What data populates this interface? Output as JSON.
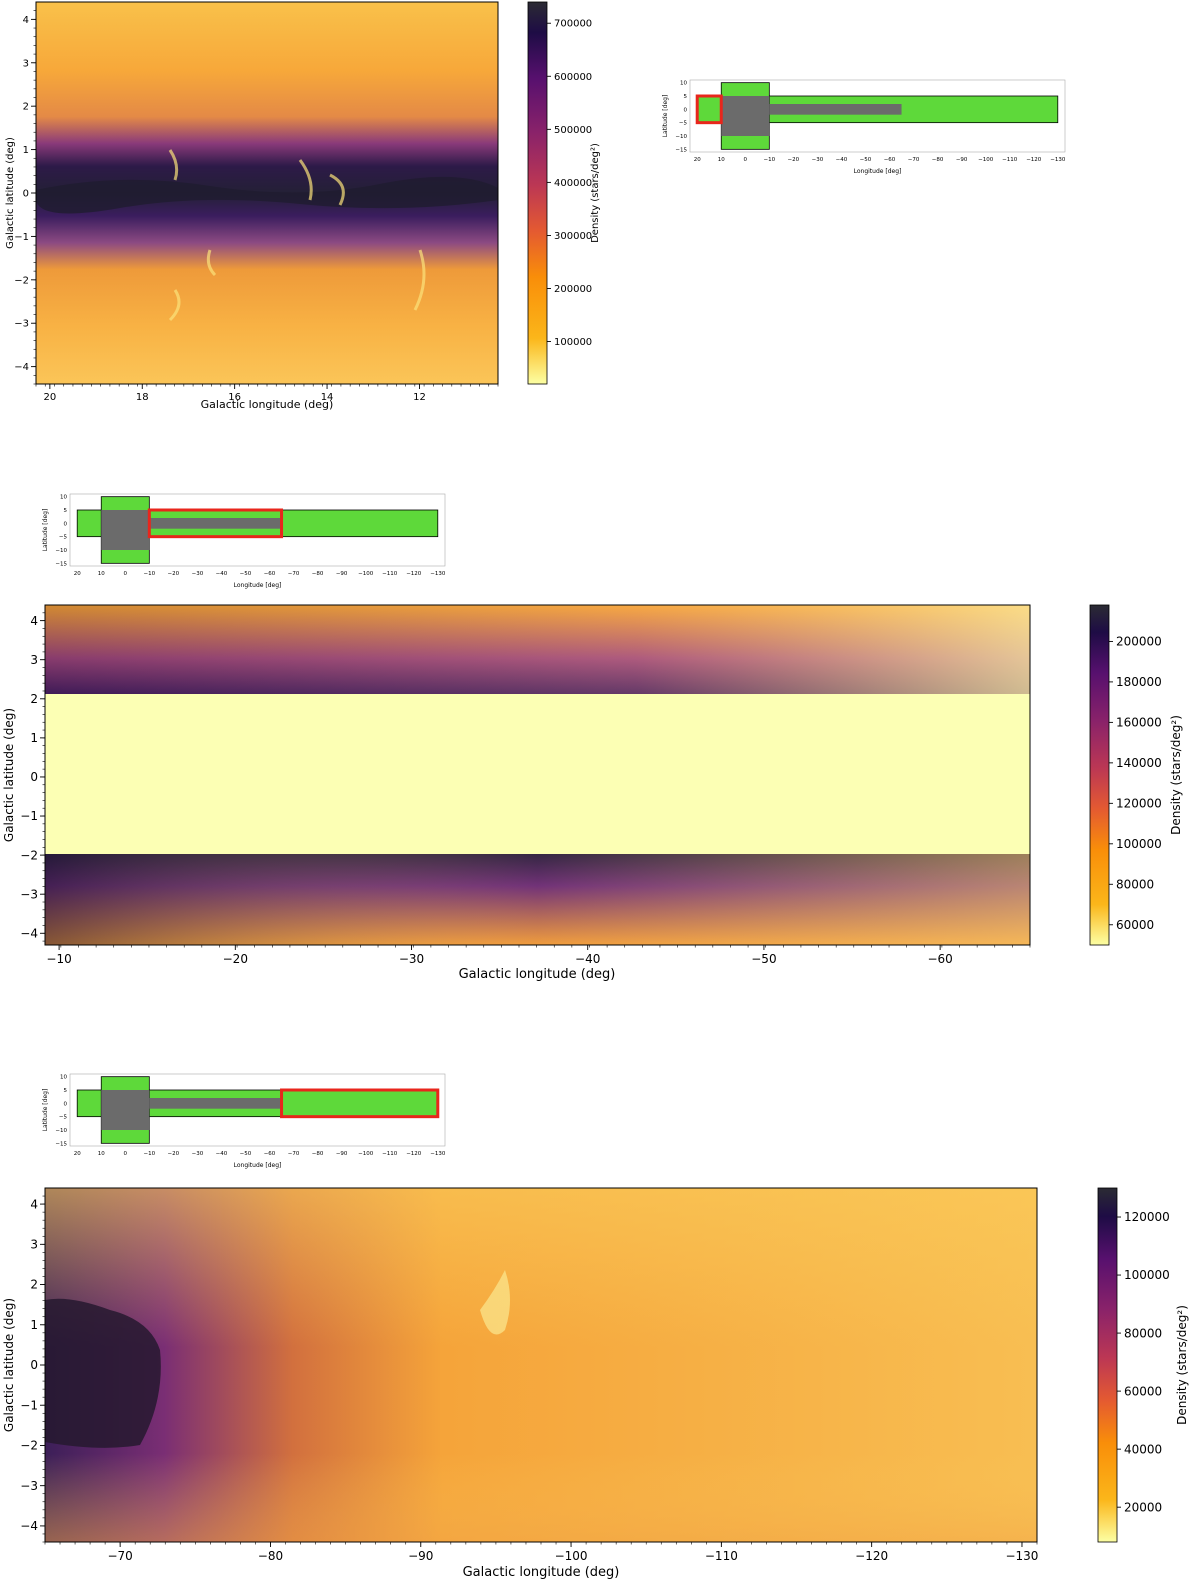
{
  "colormap": {
    "name": "inferno_r",
    "stops": [
      "#fcffa4",
      "#fbb61a",
      "#f98e09",
      "#e45a31",
      "#bc3754",
      "#89226a",
      "#57106e",
      "#1e0c45",
      "#2b2b33"
    ]
  },
  "inset_colors": {
    "survey": "#5ed93a",
    "gray": "#6b6b6b",
    "highlight": "#e8261c"
  },
  "inset": {
    "ylabel": "Latitude [deg]",
    "xlabel": "Longitude [deg]",
    "xticks": [
      "20",
      "10",
      "0",
      "−10",
      "−20",
      "−30",
      "−40",
      "−50",
      "−60",
      "−70",
      "−80",
      "−90",
      "−100",
      "−110",
      "−120",
      "−130"
    ],
    "yticks": [
      "10",
      "5",
      "0",
      "−5",
      "−10",
      "−15"
    ]
  },
  "chart_data": [
    {
      "type": "heatmap",
      "panel": "top",
      "xlabel": "Galactic longitude (deg)",
      "ylabel": "Galactic latitude (deg)",
      "colorbar_label": "Density (stars/deg²)",
      "xlim": [
        20.3,
        10.3
      ],
      "ylim": [
        -4.4,
        4.4
      ],
      "xticks": [
        20,
        18,
        16,
        14,
        12
      ],
      "xtick_labels": [
        "20",
        "18",
        "16",
        "14",
        "12"
      ],
      "yticks": [
        4,
        3,
        2,
        1,
        0,
        -1,
        -2,
        -3,
        -4
      ],
      "ytick_labels": [
        "4",
        "3",
        "2",
        "1",
        "0",
        "−1",
        "−2",
        "−3",
        "−4"
      ],
      "clim": [
        20000,
        740000
      ],
      "cbar_ticks": [
        100000,
        200000,
        300000,
        400000,
        500000,
        600000,
        700000
      ],
      "cbar_tick_labels": [
        "100000",
        "200000",
        "300000",
        "400000",
        "500000",
        "600000",
        "700000"
      ],
      "inset_highlight_longitude": [
        20,
        10
      ],
      "inset_highlight_latitude": [
        -5,
        5
      ]
    },
    {
      "type": "heatmap",
      "panel": "middle",
      "xlabel": "Galactic longitude (deg)",
      "ylabel": "Galactic latitude (deg)",
      "colorbar_label": "Density (stars/deg²)",
      "xlim": [
        -9.2,
        -65.1
      ],
      "ylim": [
        -4.3,
        4.4
      ],
      "xticks": [
        -10,
        -20,
        -30,
        -40,
        -50,
        -60
      ],
      "xtick_labels": [
        "−10",
        "−20",
        "−30",
        "−40",
        "−50",
        "−60"
      ],
      "yticks": [
        4,
        3,
        2,
        1,
        0,
        -1,
        -2,
        -3,
        -4
      ],
      "ytick_labels": [
        "4",
        "3",
        "2",
        "1",
        "0",
        "−1",
        "−2",
        "−3",
        "−4"
      ],
      "clim": [
        50000,
        218000
      ],
      "cbar_ticks": [
        60000,
        80000,
        100000,
        120000,
        140000,
        160000,
        180000,
        200000
      ],
      "cbar_tick_labels": [
        "60000",
        "80000",
        "100000",
        "120000",
        "140000",
        "160000",
        "180000",
        "200000"
      ],
      "masked_latitude": [
        -2,
        2.1
      ],
      "inset_highlight_longitude": [
        -10,
        -65
      ],
      "inset_highlight_latitude": [
        -5,
        5
      ]
    },
    {
      "type": "heatmap",
      "panel": "bottom",
      "xlabel": "Galactic longitude (deg)",
      "ylabel": "Galactic latitude (deg)",
      "colorbar_label": "Density (stars/deg²)",
      "xlim": [
        -65,
        -131
      ],
      "ylim": [
        -4.4,
        4.4
      ],
      "xticks": [
        -70,
        -80,
        -90,
        -100,
        -110,
        -120,
        -130
      ],
      "xtick_labels": [
        "−70",
        "−80",
        "−90",
        "−100",
        "−110",
        "−120",
        "−130"
      ],
      "yticks": [
        4,
        3,
        2,
        1,
        0,
        -1,
        -2,
        -3,
        -4
      ],
      "ytick_labels": [
        "4",
        "3",
        "2",
        "1",
        "0",
        "−1",
        "−2",
        "−3",
        "−4"
      ],
      "clim": [
        8000,
        130000
      ],
      "cbar_ticks": [
        20000,
        40000,
        60000,
        80000,
        100000,
        120000
      ],
      "cbar_tick_labels": [
        "20000",
        "40000",
        "60000",
        "80000",
        "100000",
        "120000"
      ],
      "inset_highlight_longitude": [
        -65,
        -130
      ],
      "inset_highlight_latitude": [
        -5,
        5
      ]
    }
  ]
}
